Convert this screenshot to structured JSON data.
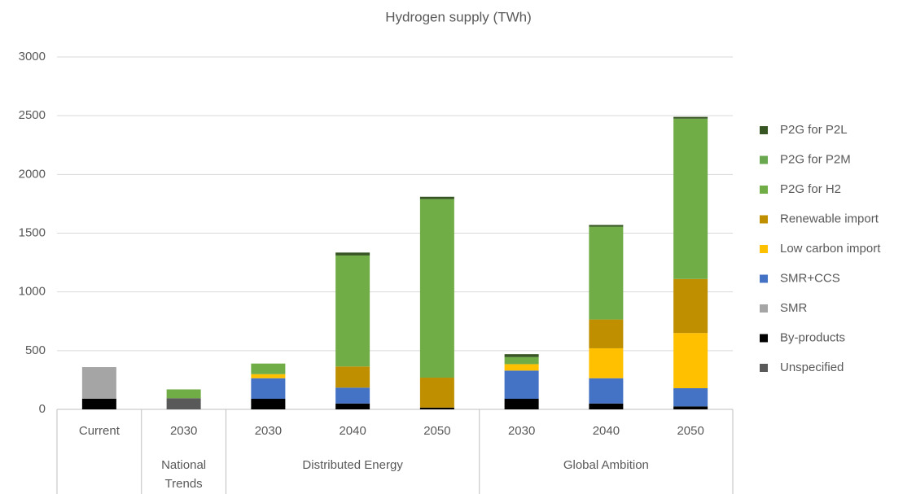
{
  "chart_data": {
    "type": "stacked_bar",
    "title": "Hydrogen supply (TWh)",
    "categories": [
      "Current",
      "2030",
      "2030",
      "2040",
      "2050",
      "2030",
      "2040",
      "2050"
    ],
    "groups": [
      {
        "size": 1
      },
      {
        "name": "National Trends",
        "size": 1
      },
      {
        "name": "Distributed Energy",
        "size": 3
      },
      {
        "name": "Global Ambition",
        "size": 3
      }
    ],
    "series": [
      {
        "name": "Unspecified",
        "color": "#595959",
        "values": [
          0,
          95,
          0,
          0,
          0,
          0,
          0,
          0
        ]
      },
      {
        "name": "By-products",
        "color": "#000000",
        "values": [
          90,
          0,
          90,
          50,
          15,
          90,
          50,
          25
        ]
      },
      {
        "name": "SMR",
        "color": "#a5a5a5",
        "values": [
          270,
          0,
          0,
          0,
          0,
          0,
          0,
          0
        ]
      },
      {
        "name": "SMR+CCS",
        "color": "#4472c4",
        "values": [
          0,
          0,
          175,
          135,
          0,
          240,
          215,
          155
        ]
      },
      {
        "name": "Low carbon import",
        "color": "#ffc000",
        "values": [
          0,
          0,
          35,
          0,
          0,
          55,
          255,
          470
        ]
      },
      {
        "name": "Renewable import",
        "color": "#bf8f00",
        "values": [
          0,
          0,
          0,
          180,
          255,
          0,
          245,
          460
        ]
      },
      {
        "name": "P2G for H2",
        "color": "#70ad47",
        "values": [
          0,
          75,
          90,
          945,
          1520,
          60,
          790,
          1365
        ]
      },
      {
        "name": "P2G for P2M",
        "color": "#6aa84f",
        "values": [
          0,
          0,
          0,
          0,
          0,
          0,
          0,
          0
        ]
      },
      {
        "name": "P2G for P2L",
        "color": "#375623",
        "values": [
          0,
          0,
          0,
          25,
          20,
          25,
          15,
          15
        ]
      }
    ],
    "ylim": [
      0,
      3000
    ],
    "yticks": [
      0,
      500,
      1000,
      1500,
      2000,
      2500,
      3000
    ],
    "grid": true,
    "legend": "right"
  }
}
